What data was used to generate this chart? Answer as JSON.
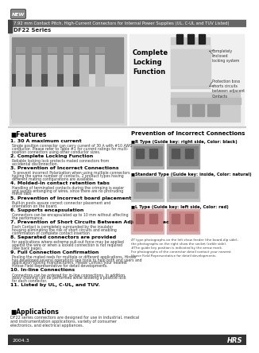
{
  "title_new_badge": "NEW",
  "title_main": "7.92 mm Contact Pitch, High-Current Connectors for Internal Power Supplies (UL, C-UL and TUV Listed)",
  "series_label": "DF22 Series",
  "bg_color": "#ffffff",
  "features_title": "■Features",
  "features": [
    [
      "1. 30 A maximum current",
      "Single position connector can carry current of 30 A with #10 AWG\nconductor. Please refer to Table #1 for current ratings for multi-\nposition connectors using other conductor sizes."
    ],
    [
      "2. Complete Locking Function",
      "Reliable locking lock protects mated connectors from\naccidental disconnection."
    ],
    [
      "3. Prevention of Incorrect Connections",
      "To prevent incorrect Polarization when using multiple connectors\nhaving the same number of contacts, 2 product types having\ndifferent mating configurations are available."
    ],
    [
      "4. Molded-in contact retention tabs",
      "Handling of terminated contacts during the crimping is easier\nand avoids entangling of wires, since there are no protruding\nmetal tabs."
    ],
    [
      "5. Prevention of incorrect board placement",
      "Built-in posts assure correct connector placement and\norientation on the board."
    ],
    [
      "6. Supports encapsulation",
      "Connectors can be encapsulated up to 10 mm without affecting\nthe performance."
    ],
    [
      "7. Prevention of Short Circuits Between Adjacent Contacts",
      "Each Contact is completely surrounded by the insulator\nhousing eliminating the risk of short circuits and enabling\nconfirmation of complete contact insertion"
    ],
    [
      "8. Separated connectors are provided",
      "for applications where extreme pull-out force may be applied\nagainst the wire or when a locked connection is not required\n(see back page)."
    ],
    [
      "9. Full Connection Confirmation",
      "Pooling the mated reels for multiple or different applications, Hirose\nhas developed several operations line tools to help both end users and\napplication tooling manufacturers. Please Contact your nearest\nHirose Field Representative for detail developments."
    ],
    [
      "10. In-line Connections",
      "Connectors can be ordered for in-line connections. In addition,\ndaisy-chaining can be performed while allowing a positive lock\nfor each connector."
    ],
    [
      "11. Listed by UL, C-UL, and TUV.",
      ""
    ]
  ],
  "right_panel_title": "Prevention of Incorrect Connections",
  "r_type_label": "■R Type (Guide key: right side, Color: black)",
  "std_type_label": "■Standard Type (Guide key: inside, Color: natural)",
  "l_type_label": "■L Type (Guide key: left side, Color: red)",
  "locking_label": "Complete\nLocking\nFunction",
  "locking_note1": "Completely\nenclosed\nlocking system",
  "locking_note2": "Protection boss\nshorts circuits\nbetween adjacent\nContacts",
  "applications_title": "■Applications",
  "applications_text": "DF22 series connectors are designed for use in industrial, medical\nand instrumentation applications, variety of consumer\nelectronics, and electrical appliances.",
  "photo_note": "4T type photographs on the left show feeder (the board-dip side),\nthe photographs on the right show the socket (cable side).\n#The guide key position is indicated by the arrow mark.\nFor photographs of the connector detail contact your nearest\nHirose Field Representative for detail developments.",
  "footer_year": "2004.3",
  "footer_brand": "HRS"
}
